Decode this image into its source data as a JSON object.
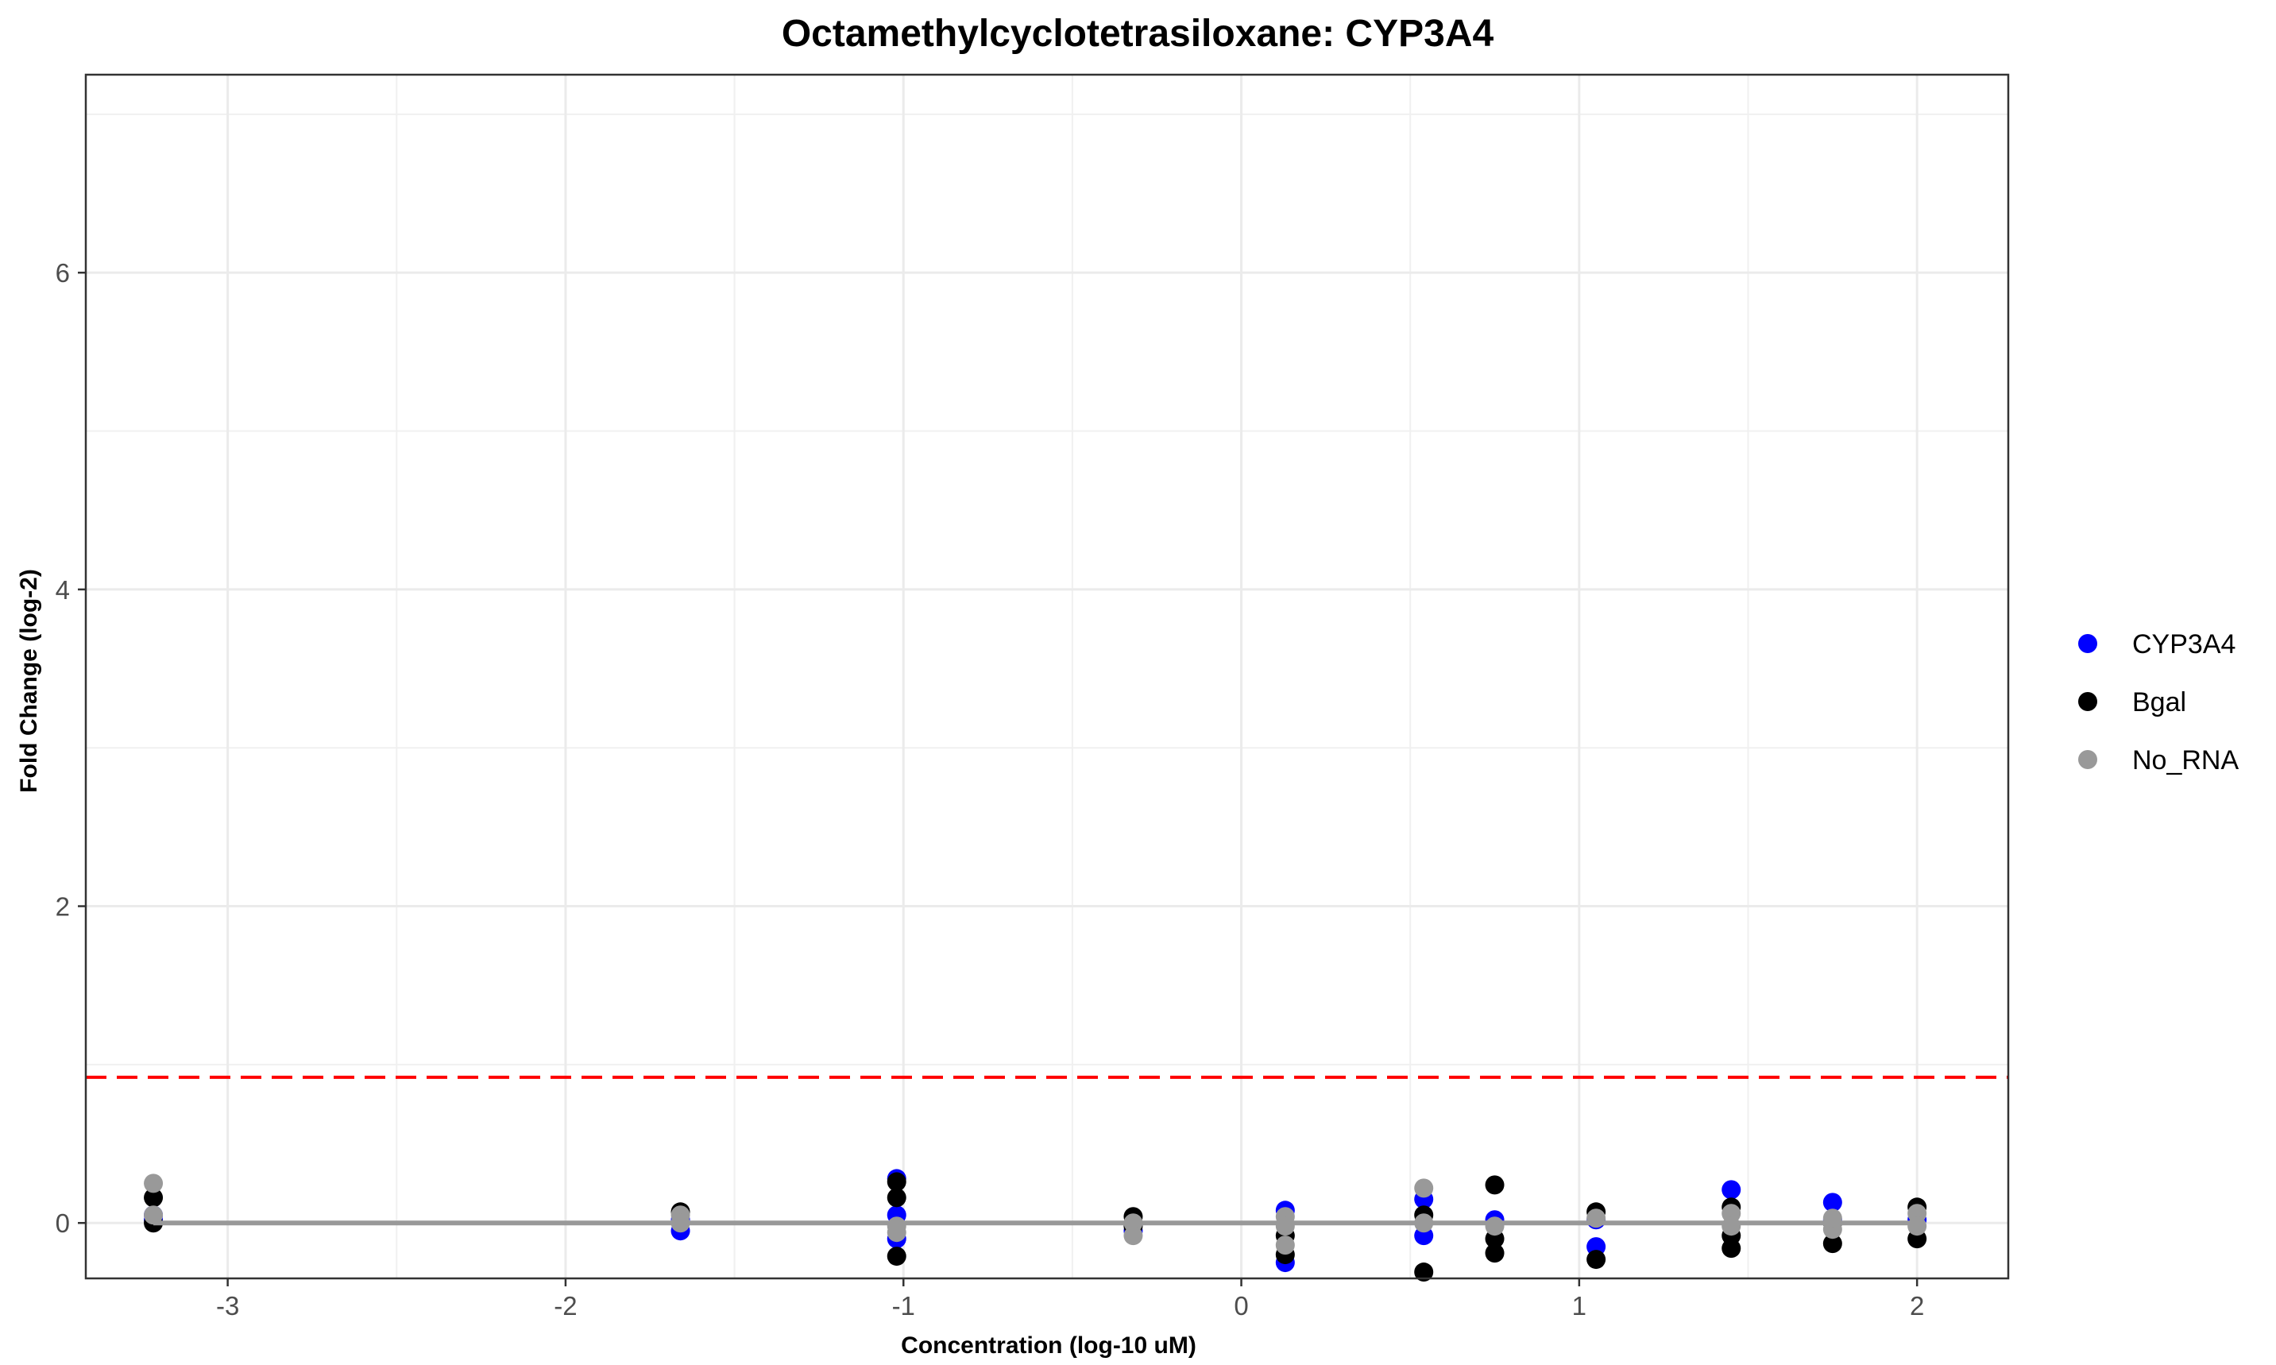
{
  "chart_data": {
    "type": "scatter",
    "title": "Octamethylcyclotetrasiloxane: CYP3A4",
    "xlabel": "Concentration (log-10 uM)",
    "ylabel": "Fold Change (log-2)",
    "xlim": [
      -3.42,
      2.27
    ],
    "ylim": [
      -0.35,
      7.25
    ],
    "x_ticks": [
      -3,
      -2,
      -1,
      0,
      1,
      2
    ],
    "y_ticks": [
      0,
      2,
      4,
      6
    ],
    "grid": true,
    "legend_position": "right",
    "threshold_line": {
      "y": 0.92,
      "color": "#ff0000",
      "style": "dashed"
    },
    "fit_line": {
      "y": 0,
      "color": "#999999"
    },
    "series": [
      {
        "name": "CYP3A4",
        "color": "#0000ff",
        "points": [
          {
            "x": -3.22,
            "y": 0.05
          },
          {
            "x": -3.22,
            "y": 0.02
          },
          {
            "x": -1.66,
            "y": -0.05
          },
          {
            "x": -1.66,
            "y": 0.02
          },
          {
            "x": -1.02,
            "y": 0.28
          },
          {
            "x": -1.02,
            "y": 0.05
          },
          {
            "x": -1.02,
            "y": -0.1
          },
          {
            "x": -0.32,
            "y": -0.05
          },
          {
            "x": 0.13,
            "y": 0.08
          },
          {
            "x": 0.13,
            "y": -0.25
          },
          {
            "x": 0.54,
            "y": 0.15
          },
          {
            "x": 0.54,
            "y": -0.08
          },
          {
            "x": 0.75,
            "y": 0.02
          },
          {
            "x": 1.05,
            "y": -0.15
          },
          {
            "x": 1.05,
            "y": 0.02
          },
          {
            "x": 1.45,
            "y": 0.21
          },
          {
            "x": 1.75,
            "y": 0.13
          },
          {
            "x": 1.75,
            "y": 0.02
          },
          {
            "x": 2.0,
            "y": 0.02
          }
        ]
      },
      {
        "name": "Bgal",
        "color": "#000000",
        "points": [
          {
            "x": -3.22,
            "y": 0.16
          },
          {
            "x": -3.22,
            "y": 0.0
          },
          {
            "x": -1.66,
            "y": 0.07
          },
          {
            "x": -1.02,
            "y": 0.26
          },
          {
            "x": -1.02,
            "y": 0.16
          },
          {
            "x": -1.02,
            "y": -0.21
          },
          {
            "x": -0.32,
            "y": 0.04
          },
          {
            "x": -0.32,
            "y": -0.02
          },
          {
            "x": 0.13,
            "y": -0.08
          },
          {
            "x": 0.13,
            "y": -0.2
          },
          {
            "x": 0.54,
            "y": 0.05
          },
          {
            "x": 0.54,
            "y": -0.31
          },
          {
            "x": 0.75,
            "y": 0.24
          },
          {
            "x": 0.75,
            "y": -0.1
          },
          {
            "x": 0.75,
            "y": -0.19
          },
          {
            "x": 1.05,
            "y": 0.07
          },
          {
            "x": 1.05,
            "y": -0.23
          },
          {
            "x": 1.45,
            "y": 0.1
          },
          {
            "x": 1.45,
            "y": -0.08
          },
          {
            "x": 1.45,
            "y": -0.16
          },
          {
            "x": 1.75,
            "y": -0.13
          },
          {
            "x": 1.75,
            "y": 0.0
          },
          {
            "x": 2.0,
            "y": 0.1
          },
          {
            "x": 2.0,
            "y": -0.1
          }
        ]
      },
      {
        "name": "No_RNA",
        "color": "#999999",
        "points": [
          {
            "x": -3.22,
            "y": 0.25
          },
          {
            "x": -3.22,
            "y": 0.05
          },
          {
            "x": -1.66,
            "y": 0.05
          },
          {
            "x": -1.66,
            "y": 0.0
          },
          {
            "x": -1.02,
            "y": -0.02
          },
          {
            "x": -1.02,
            "y": -0.06
          },
          {
            "x": -0.32,
            "y": 0.0
          },
          {
            "x": -0.32,
            "y": -0.08
          },
          {
            "x": 0.13,
            "y": 0.04
          },
          {
            "x": 0.13,
            "y": -0.02
          },
          {
            "x": 0.13,
            "y": -0.14
          },
          {
            "x": 0.54,
            "y": 0.22
          },
          {
            "x": 0.54,
            "y": 0.0
          },
          {
            "x": 0.75,
            "y": -0.02
          },
          {
            "x": 1.05,
            "y": 0.03
          },
          {
            "x": 1.45,
            "y": 0.06
          },
          {
            "x": 1.45,
            "y": -0.02
          },
          {
            "x": 1.75,
            "y": -0.04
          },
          {
            "x": 1.75,
            "y": 0.03
          },
          {
            "x": 2.0,
            "y": 0.06
          },
          {
            "x": 2.0,
            "y": -0.02
          }
        ]
      }
    ]
  }
}
